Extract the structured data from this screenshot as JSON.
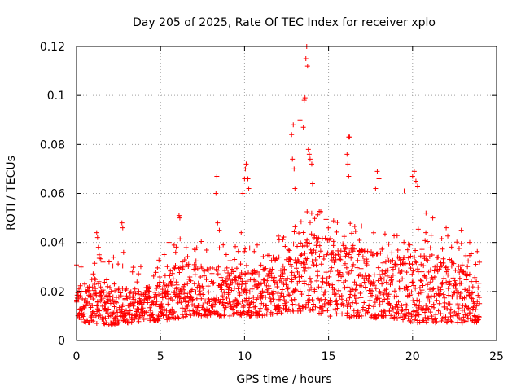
{
  "chart_data": {
    "type": "scatter",
    "title": "Day 205 of 2025, Rate Of TEC Index for receiver xplo",
    "xlabel": "GPS time / hours",
    "ylabel": "ROTI / TECUs",
    "xlim": [
      0,
      25
    ],
    "ylim": [
      0,
      0.12
    ],
    "x_ticks": [
      0,
      5,
      10,
      15,
      20,
      25
    ],
    "y_ticks": [
      0,
      0.02,
      0.04,
      0.06,
      0.08,
      0.1,
      0.12
    ],
    "x_tick_labels": [
      "0",
      "5",
      "10",
      "15",
      "20",
      "25"
    ],
    "y_tick_labels": [
      "0",
      "0.02",
      "0.04",
      "0.06",
      "0.08",
      "0.1",
      "0.12"
    ],
    "grid": true,
    "marker": "+",
    "color": "#ff0000",
    "series": [
      {
        "name": "ROTI",
        "envelope": {
          "hours": [
            0.0,
            1.0,
            2.0,
            3.0,
            4.0,
            5.0,
            6.0,
            7.0,
            8.0,
            9.0,
            10.0,
            11.0,
            12.0,
            13.0,
            14.0,
            15.0,
            16.0,
            17.0,
            18.0,
            19.0,
            20.0,
            21.0,
            22.0,
            23.0,
            24.0
          ],
          "low": [
            0.008,
            0.007,
            0.006,
            0.007,
            0.008,
            0.008,
            0.009,
            0.01,
            0.01,
            0.01,
            0.01,
            0.01,
            0.011,
            0.012,
            0.012,
            0.01,
            0.009,
            0.01,
            0.009,
            0.009,
            0.007,
            0.007,
            0.007,
            0.007,
            0.007
          ],
          "high": [
            0.022,
            0.026,
            0.022,
            0.022,
            0.02,
            0.026,
            0.032,
            0.032,
            0.03,
            0.03,
            0.028,
            0.03,
            0.034,
            0.04,
            0.044,
            0.042,
            0.04,
            0.038,
            0.036,
            0.034,
            0.036,
            0.036,
            0.034,
            0.03,
            0.026
          ]
        },
        "spikes": [
          [
            1.2,
            0.044
          ],
          [
            1.25,
            0.042
          ],
          [
            1.3,
            0.038
          ],
          [
            1.35,
            0.035
          ],
          [
            2.7,
            0.048
          ],
          [
            2.75,
            0.046
          ],
          [
            2.8,
            0.036
          ],
          [
            2.2,
            0.034
          ],
          [
            5.9,
            0.036
          ],
          [
            6.1,
            0.051
          ],
          [
            6.15,
            0.05
          ],
          [
            5.5,
            0.04
          ],
          [
            8.35,
            0.067
          ],
          [
            8.3,
            0.06
          ],
          [
            8.4,
            0.048
          ],
          [
            8.5,
            0.045
          ],
          [
            9.8,
            0.044
          ],
          [
            9.9,
            0.06
          ],
          [
            10.0,
            0.066
          ],
          [
            10.05,
            0.07
          ],
          [
            10.1,
            0.072
          ],
          [
            10.2,
            0.066
          ],
          [
            10.25,
            0.062
          ],
          [
            12.8,
            0.084
          ],
          [
            12.9,
            0.088
          ],
          [
            12.85,
            0.074
          ],
          [
            12.95,
            0.07
          ],
          [
            13.0,
            0.062
          ],
          [
            13.3,
            0.09
          ],
          [
            13.5,
            0.087
          ],
          [
            13.55,
            0.098
          ],
          [
            13.6,
            0.099
          ],
          [
            13.65,
            0.115
          ],
          [
            13.7,
            0.12
          ],
          [
            13.75,
            0.112
          ],
          [
            13.8,
            0.078
          ],
          [
            13.85,
            0.076
          ],
          [
            13.9,
            0.074
          ],
          [
            14.0,
            0.072
          ],
          [
            14.05,
            0.064
          ],
          [
            16.2,
            0.083
          ],
          [
            16.25,
            0.083
          ],
          [
            16.1,
            0.076
          ],
          [
            16.15,
            0.072
          ],
          [
            16.2,
            0.067
          ],
          [
            17.9,
            0.069
          ],
          [
            18.0,
            0.066
          ],
          [
            17.8,
            0.062
          ],
          [
            20.0,
            0.067
          ],
          [
            20.1,
            0.069
          ],
          [
            20.2,
            0.065
          ],
          [
            20.3,
            0.063
          ],
          [
            19.5,
            0.061
          ],
          [
            20.8,
            0.052
          ],
          [
            21.2,
            0.05
          ],
          [
            22.0,
            0.046
          ],
          [
            22.9,
            0.045
          ],
          [
            23.4,
            0.04
          ]
        ]
      }
    ]
  }
}
